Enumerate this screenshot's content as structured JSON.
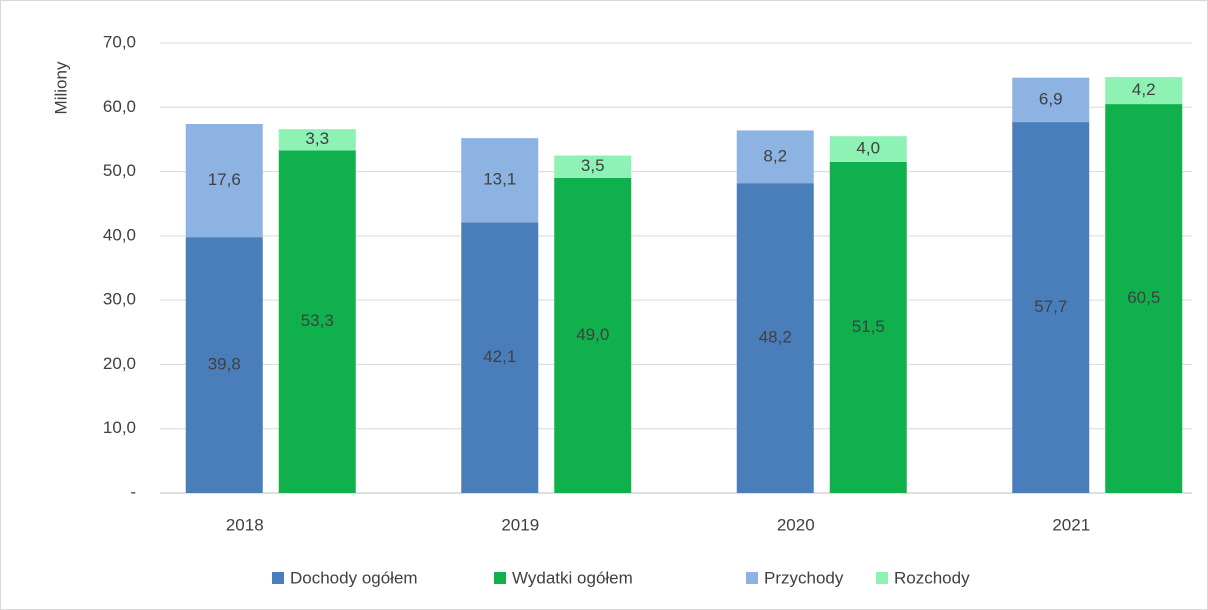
{
  "chart_data": {
    "type": "stacked-grouped-bar",
    "y_label": "Miliony",
    "categories": [
      "2018",
      "2019",
      "2020",
      "2021"
    ],
    "series": [
      {
        "name": "Dochody ogółem",
        "color": "#4a7ebb",
        "stack": 0,
        "values": [
          39.8,
          42.1,
          48.2,
          57.7
        ],
        "value_labels": [
          "39,8",
          "42,1",
          "48,2",
          "57,7"
        ]
      },
      {
        "name": "Wydatki ogółem",
        "color": "#10b14d",
        "stack": 1,
        "values": [
          53.3,
          49.0,
          51.5,
          60.5
        ],
        "value_labels": [
          "53,3",
          "49,0",
          "51,5",
          "60,5"
        ]
      },
      {
        "name": "Przychody",
        "color": "#8db3e2",
        "stack": 0,
        "values": [
          17.6,
          13.1,
          8.2,
          6.9
        ],
        "value_labels": [
          "17,6",
          "13,1",
          "8,2",
          "6,9"
        ]
      },
      {
        "name": "Rozchody",
        "color": "#8ef2b4",
        "stack": 1,
        "values": [
          3.3,
          3.5,
          4.0,
          4.2
        ],
        "value_labels": [
          "3,3",
          "3,5",
          "4,0",
          "4,2"
        ]
      }
    ],
    "ylim": [
      0,
      70
    ],
    "yticks": [
      {
        "value": 0,
        "label": "-"
      },
      {
        "value": 10,
        "label": "10,0"
      },
      {
        "value": 20,
        "label": "20,0"
      },
      {
        "value": 30,
        "label": "30,0"
      },
      {
        "value": 40,
        "label": "40,0"
      },
      {
        "value": 50,
        "label": "50,0"
      },
      {
        "value": 60,
        "label": "60,0"
      },
      {
        "value": 70,
        "label": "70,0"
      }
    ],
    "grid": true,
    "legend": "bottom"
  }
}
